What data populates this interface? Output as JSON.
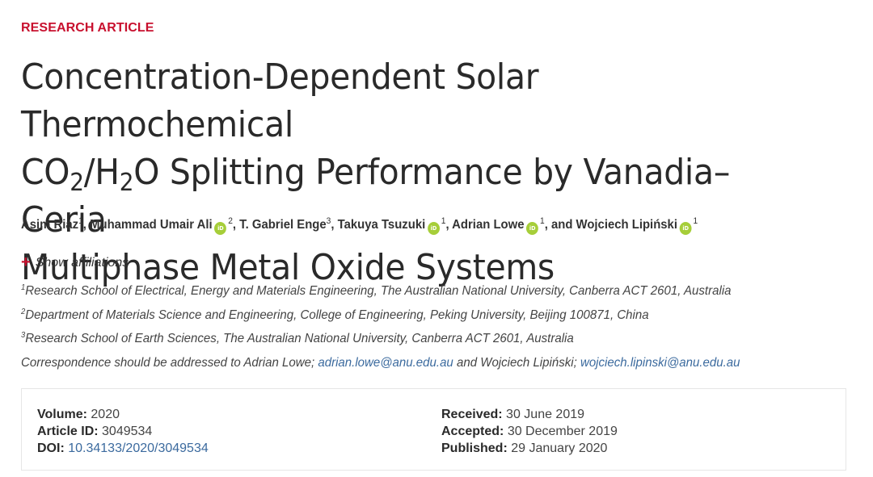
{
  "article_type": "RESEARCH ARTICLE",
  "title": {
    "line1": "Concentration-Dependent Solar Thermochemical",
    "line2_a": "CO",
    "line2_sub1": "2",
    "line2_b": "/H",
    "line2_sub2": "2",
    "line2_c": "O Splitting Performance by Vanadia–Ceria",
    "line3": "Multiphase Metal Oxide Systems"
  },
  "authors": [
    {
      "name": "Asim Riaz",
      "aff": "1",
      "orcid": false,
      "sep": ", "
    },
    {
      "name": "Muhammad Umair Ali",
      "aff": "2",
      "orcid": true,
      "sep": ", "
    },
    {
      "name": "T. Gabriel Enge",
      "aff": "3",
      "orcid": false,
      "sep": ", "
    },
    {
      "name": "Takuya Tsuzuki",
      "aff": "1",
      "orcid": true,
      "sep": ", "
    },
    {
      "name": "Adrian Lowe",
      "aff": "1",
      "orcid": true,
      "sep": ", and "
    },
    {
      "name": "Wojciech Lipiński",
      "aff": "1",
      "orcid": true,
      "sep": ""
    }
  ],
  "orcid_label": "iD",
  "show_affiliations": "Show affiliations",
  "affiliations": [
    {
      "num": "1",
      "text": "Research School of Electrical, Energy and Materials Engineering, The Australian National University, Canberra ACT 2601, Australia"
    },
    {
      "num": "2",
      "text": "Department of Materials Science and Engineering, College of Engineering, Peking University, Beijing 100871, China"
    },
    {
      "num": "3",
      "text": "Research School of Earth Sciences, The Australian National University, Canberra ACT 2601, Australia"
    }
  ],
  "correspondence": {
    "prefix": "Correspondence should be addressed to Adrian Lowe; ",
    "email1": "adrian.lowe@anu.edu.au",
    "middle": " and Wojciech Lipiński; ",
    "email2": "wojciech.lipinski@anu.edu.au"
  },
  "meta": {
    "volume_label": "Volume:",
    "volume": "2020",
    "article_id_label": "Article ID:",
    "article_id": "3049534",
    "doi_label": "DOI:",
    "doi": "10.34133/2020/3049534",
    "received_label": "Received:",
    "received": "30 June 2019",
    "accepted_label": "Accepted:",
    "accepted": "30 December 2019",
    "published_label": "Published:",
    "published": "29 January 2020"
  },
  "colors": {
    "accent": "#c8102e",
    "link": "#3b6a9e",
    "orcid": "#a6ce39"
  }
}
